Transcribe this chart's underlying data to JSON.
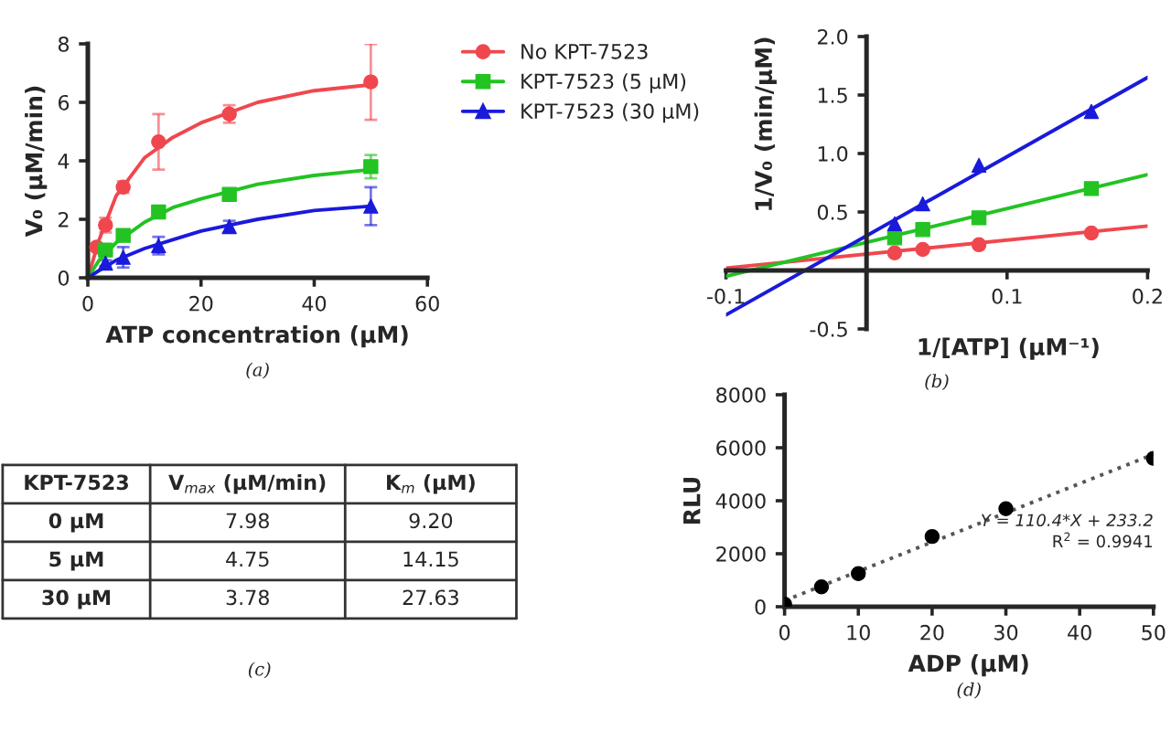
{
  "chart_data": [
    {
      "type": "scatter",
      "xlabel": "ATP concentration (μM)",
      "ylabel": "V₀ (μM/min)",
      "xlim": [
        0,
        60
      ],
      "ylim": [
        0,
        8
      ],
      "xticks": [
        0,
        20,
        40,
        60
      ],
      "yticks": [
        0,
        2,
        4,
        6,
        8
      ],
      "grid": false,
      "legend": "right",
      "annotations": [
        "(a)"
      ],
      "series": [
        {
          "name": "No KPT-7523",
          "color": "#f0474e",
          "marker": "circle",
          "x": [
            1.56,
            3.125,
            6.25,
            12.5,
            25,
            50
          ],
          "values": [
            1.05,
            1.8,
            3.1,
            4.65,
            5.6,
            6.7
          ],
          "errors": [
            0.1,
            0.25,
            0.2,
            0.95,
            0.3,
            1.3
          ]
        },
        {
          "name": "KPT-7523 (5 μM)",
          "color": "#22c322",
          "marker": "square",
          "x": [
            3.125,
            6.25,
            12.5,
            25,
            50
          ],
          "values": [
            0.95,
            1.45,
            2.25,
            2.85,
            3.8
          ],
          "errors": [
            0.1,
            0.15,
            0.1,
            0.15,
            0.4
          ]
        },
        {
          "name": "KPT-7523 (30 μM)",
          "color": "#1a1adc",
          "marker": "triangle",
          "x": [
            3.125,
            6.25,
            12.5,
            25,
            50
          ],
          "values": [
            0.5,
            0.7,
            1.1,
            1.75,
            2.45
          ],
          "errors": [
            0.1,
            0.35,
            0.3,
            0.2,
            0.65
          ]
        },
        {
          "type": "line",
          "color": "#f0474e",
          "x": [
            0,
            2,
            5,
            10,
            15,
            20,
            30,
            40,
            50
          ],
          "values": [
            0,
            1.3,
            2.8,
            4.1,
            4.8,
            5.3,
            6.0,
            6.4,
            6.6
          ]
        },
        {
          "type": "line",
          "color": "#22c322",
          "x": [
            0,
            2,
            5,
            10,
            15,
            20,
            30,
            40,
            50
          ],
          "values": [
            0,
            0.6,
            1.2,
            1.9,
            2.4,
            2.7,
            3.2,
            3.5,
            3.7
          ]
        },
        {
          "type": "line",
          "color": "#1a1adc",
          "x": [
            0,
            2,
            5,
            10,
            15,
            20,
            30,
            40,
            50
          ],
          "values": [
            0,
            0.25,
            0.6,
            1.0,
            1.3,
            1.6,
            2.0,
            2.3,
            2.45
          ]
        }
      ]
    },
    {
      "type": "scatter",
      "xlabel": "1/[ATP] (μM⁻¹)",
      "ylabel": "1/V₀ (min/μM)",
      "xlim": [
        -0.1,
        0.2
      ],
      "ylim": [
        -0.5,
        2.0
      ],
      "xticks": [
        -0.1,
        {
          "value": 0,
          "label": null
        },
        0.1,
        0.2
      ],
      "yticks": [
        -0.5,
        {
          "value": 0,
          "label": null
        },
        0.5,
        {
          "value": 1.0,
          "label": "1.0"
        },
        1.5,
        {
          "value": 2.0,
          "label": "2.0"
        }
      ],
      "grid": false,
      "annotations": [
        "(b)"
      ],
      "series": [
        {
          "color": "#f0474e",
          "marker": "circle",
          "x": [
            0.02,
            0.04,
            0.08,
            0.16
          ],
          "values": [
            0.15,
            0.18,
            0.22,
            0.32
          ]
        },
        {
          "color": "#22c322",
          "marker": "square",
          "x": [
            0.02,
            0.04,
            0.08,
            0.16
          ],
          "values": [
            0.28,
            0.35,
            0.45,
            0.7
          ]
        },
        {
          "color": "#1a1adc",
          "marker": "triangle",
          "x": [
            0.02,
            0.04,
            0.08,
            0.16
          ],
          "values": [
            0.4,
            0.57,
            0.9,
            1.36
          ]
        },
        {
          "type": "line",
          "color": "#f0474e",
          "x": [
            -0.1,
            0.2
          ],
          "values": [
            0.02,
            0.38
          ]
        },
        {
          "type": "line",
          "color": "#22c322",
          "x": [
            -0.1,
            0.2
          ],
          "values": [
            -0.05,
            0.82
          ]
        },
        {
          "type": "line",
          "color": "#1a1adc",
          "x": [
            -0.1,
            0.2
          ],
          "values": [
            -0.38,
            1.65
          ]
        }
      ]
    },
    {
      "type": "other",
      "annotations": [
        "KPT-7523",
        "V$_{max}$ (μM/min)",
        "K$_{m}$ (μM)",
        "0 μM",
        "7.98",
        "9.20",
        "5 μM",
        "4.75",
        "14.15",
        "30 μM",
        "3.78",
        "27.63",
        "(c)"
      ]
    },
    {
      "type": "scatter",
      "xlabel": "ADP (μM)",
      "ylabel": "RLU",
      "xlim": [
        0,
        50
      ],
      "ylim": [
        0,
        8000
      ],
      "xticks": [
        0,
        10,
        20,
        30,
        40,
        50
      ],
      "yticks": [
        0,
        2000,
        4000,
        6000,
        8000
      ],
      "grid": false,
      "annotations": [
        "(d)",
        "Y = 110.4*X + 233.2",
        "R$^{2}$ = 0.9941"
      ],
      "series": [
        {
          "color": "#000000",
          "marker": "circle",
          "x": [
            0,
            5,
            10,
            20,
            30,
            50
          ],
          "values": [
            100,
            750,
            1250,
            2650,
            3700,
            5600
          ]
        },
        {
          "type": "line",
          "color": "#555555",
          "line_style": "dotted",
          "x": [
            0,
            50
          ],
          "values": [
            230,
            5750
          ]
        }
      ]
    }
  ]
}
